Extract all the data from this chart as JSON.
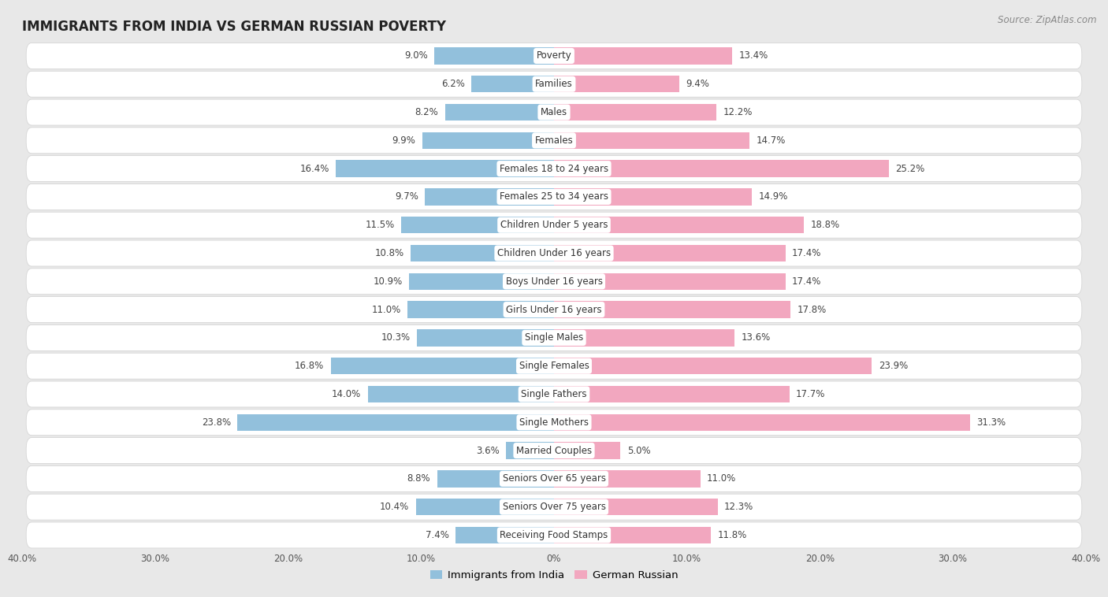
{
  "title": "IMMIGRANTS FROM INDIA VS GERMAN RUSSIAN POVERTY",
  "source": "Source: ZipAtlas.com",
  "categories": [
    "Poverty",
    "Families",
    "Males",
    "Females",
    "Females 18 to 24 years",
    "Females 25 to 34 years",
    "Children Under 5 years",
    "Children Under 16 years",
    "Boys Under 16 years",
    "Girls Under 16 years",
    "Single Males",
    "Single Females",
    "Single Fathers",
    "Single Mothers",
    "Married Couples",
    "Seniors Over 65 years",
    "Seniors Over 75 years",
    "Receiving Food Stamps"
  ],
  "india_values": [
    9.0,
    6.2,
    8.2,
    9.9,
    16.4,
    9.7,
    11.5,
    10.8,
    10.9,
    11.0,
    10.3,
    16.8,
    14.0,
    23.8,
    3.6,
    8.8,
    10.4,
    7.4
  ],
  "german_russian_values": [
    13.4,
    9.4,
    12.2,
    14.7,
    25.2,
    14.9,
    18.8,
    17.4,
    17.4,
    17.8,
    13.6,
    23.9,
    17.7,
    31.3,
    5.0,
    11.0,
    12.3,
    11.8
  ],
  "india_color": "#92c0dc",
  "german_russian_color": "#f2a7bf",
  "row_bg_color": "#ffffff",
  "outer_bg_color": "#e8e8e8",
  "sep_color": "#d0d0d0",
  "axis_limit": 40.0,
  "bar_height": 0.6,
  "legend_india": "Immigrants from India",
  "legend_german": "German Russian",
  "title_fontsize": 12,
  "label_fontsize": 8.5,
  "value_fontsize": 8.5,
  "xtick_fontsize": 8.5
}
